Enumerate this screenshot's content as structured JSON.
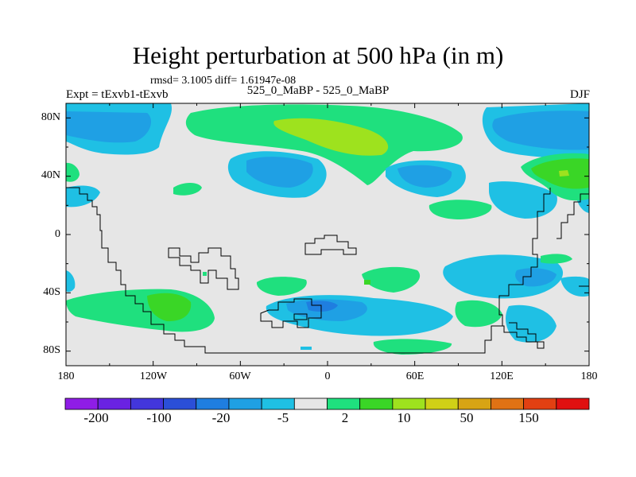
{
  "title": "Height perturbation at 500 hPa (in m)",
  "stats_label": "rmsd= 3.1005 diff= 1.61947e-08",
  "experiment_label": "Expt = tExvb1-tExvb",
  "cases_label": "525_0_MaBP - 525_0_MaBP",
  "season_label": "DJF",
  "lat_ticks": [
    "80N",
    "40N",
    "0",
    "40S",
    "80S"
  ],
  "lon_ticks": [
    "180",
    "120W",
    "60W",
    "0",
    "60E",
    "120E",
    "180"
  ],
  "colorbar": {
    "colors": [
      "#8f1de6",
      "#6a22e2",
      "#4336dc",
      "#2b4fd8",
      "#1f7ee0",
      "#1fa0e4",
      "#1fc0e4",
      "#e6e6e6",
      "#1fe07e",
      "#3ad626",
      "#9ee21e",
      "#d0d016",
      "#d8a414",
      "#e07214",
      "#e24012",
      "#e01010"
    ],
    "labels": [
      "-200",
      "-100",
      "-20",
      "-5",
      "2",
      "10",
      "50",
      "150"
    ]
  },
  "map_colors": {
    "background": "#e6e6e6",
    "light_blue": "#1fc0e4",
    "mid_blue": "#1fa0e4",
    "dark_blue": "#1f7ee0",
    "light_green": "#1fe07e",
    "green": "#3ad626",
    "yellow_green": "#9ee21e",
    "coast": "#000000"
  }
}
